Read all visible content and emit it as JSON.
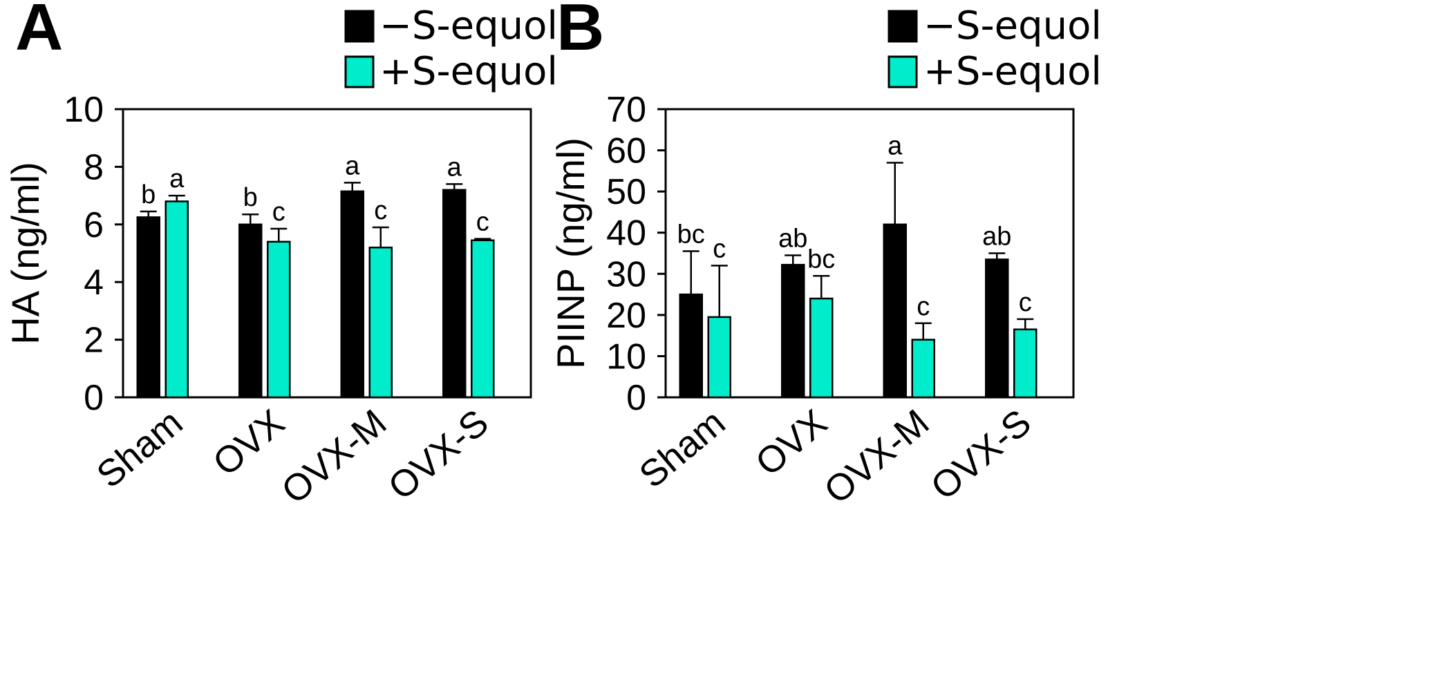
{
  "colors": {
    "minus": "#000000",
    "plus": "#00ECCB",
    "axis": "#000000"
  },
  "chart_data": [
    {
      "type": "bar",
      "panel": "A",
      "title": "",
      "xlabel": "",
      "ylabel": "HA (ng/ml)",
      "ylim": [
        0,
        10
      ],
      "yticks": [
        0,
        2,
        4,
        6,
        8,
        10
      ],
      "categories": [
        "Sham",
        "OVX",
        "OVX-M",
        "OVX-S"
      ],
      "legend": [
        "−S-equol",
        "+S-equol"
      ],
      "series": [
        {
          "name": "−S-equol",
          "values": [
            6.25,
            6.0,
            7.15,
            7.2
          ],
          "errors": [
            0.2,
            0.35,
            0.3,
            0.2
          ],
          "labels": [
            "b",
            "b",
            "a",
            "a"
          ]
        },
        {
          "name": "+S-equol",
          "values": [
            6.8,
            5.4,
            5.2,
            5.45
          ],
          "errors": [
            0.2,
            0.45,
            0.7,
            0.05
          ],
          "labels": [
            "a",
            "c",
            "c",
            "c"
          ]
        }
      ]
    },
    {
      "type": "bar",
      "panel": "B",
      "title": "",
      "xlabel": "",
      "ylabel": "PIINP (ng/ml)",
      "ylim": [
        0,
        70
      ],
      "yticks": [
        0,
        10,
        20,
        30,
        40,
        50,
        60,
        70
      ],
      "categories": [
        "Sham",
        "OVX",
        "OVX-M",
        "OVX-S"
      ],
      "legend": [
        "−S-equol",
        "+S-equol"
      ],
      "series": [
        {
          "name": "−S-equol",
          "values": [
            25,
            32.2,
            42,
            33.5
          ],
          "errors": [
            10.5,
            2.3,
            15,
            1.5
          ],
          "labels": [
            "bc",
            "ab",
            "a",
            "ab"
          ]
        },
        {
          "name": "+S-equol",
          "values": [
            19.5,
            24,
            14,
            16.5
          ],
          "errors": [
            12.5,
            5.5,
            4,
            2.5
          ],
          "labels": [
            "c",
            "bc",
            "c",
            "c"
          ]
        }
      ]
    }
  ]
}
